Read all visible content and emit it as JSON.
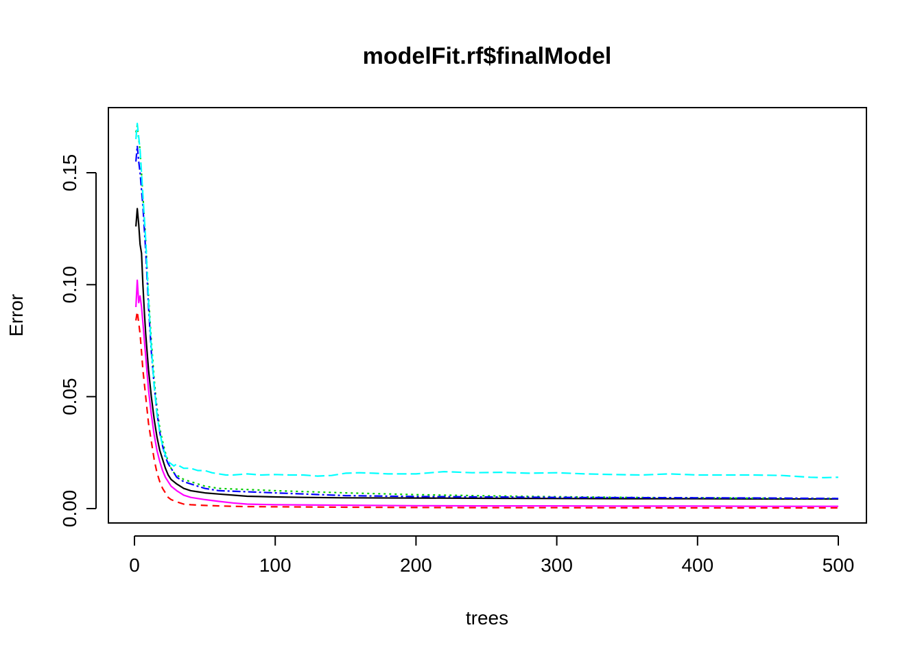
{
  "chart_data": {
    "type": "line",
    "title": "modelFit.rf$finalModel",
    "xlabel": "trees",
    "ylabel": "Error",
    "xlim": [
      0,
      500
    ],
    "ylim": [
      0,
      0.17
    ],
    "xticks": [
      0,
      100,
      200,
      300,
      400,
      500
    ],
    "xtick_labels": [
      "0",
      "100",
      "200",
      "300",
      "400",
      "500"
    ],
    "yticks": [
      0,
      0.05,
      0.1,
      0.15
    ],
    "ytick_labels": [
      "0.00",
      "0.05",
      "0.10",
      "0.15"
    ],
    "grid": false,
    "series": [
      {
        "key": "oob",
        "color": "#000000",
        "dash": "",
        "x": [
          1,
          2,
          3,
          4,
          5,
          6,
          7,
          8,
          10,
          12,
          14,
          16,
          18,
          20,
          22,
          24,
          26,
          28,
          30,
          35,
          40,
          45,
          50,
          60,
          70,
          80,
          100,
          120,
          150,
          200,
          250,
          300,
          350,
          400,
          450,
          500
        ],
        "y": [
          0.126,
          0.134,
          0.127,
          0.118,
          0.114,
          0.1,
          0.088,
          0.078,
          0.062,
          0.05,
          0.04,
          0.032,
          0.026,
          0.022,
          0.018,
          0.015,
          0.013,
          0.012,
          0.011,
          0.009,
          0.008,
          0.0075,
          0.007,
          0.0065,
          0.006,
          0.0055,
          0.0052,
          0.005,
          0.0048,
          0.0047,
          0.0046,
          0.0045,
          0.0044,
          0.0044,
          0.0043,
          0.0043
        ]
      },
      {
        "key": "A",
        "color": "#ff0000",
        "dash": "10 7",
        "x": [
          1,
          2,
          3,
          4,
          5,
          6,
          8,
          10,
          12,
          14,
          16,
          18,
          20,
          22,
          24,
          26,
          28,
          30,
          35,
          40,
          50,
          60,
          70,
          80,
          100,
          150,
          200,
          250,
          300,
          400,
          500
        ],
        "y": [
          0.084,
          0.088,
          0.083,
          0.078,
          0.07,
          0.062,
          0.05,
          0.038,
          0.03,
          0.022,
          0.016,
          0.012,
          0.009,
          0.007,
          0.005,
          0.004,
          0.0035,
          0.003,
          0.002,
          0.0017,
          0.0014,
          0.0012,
          0.001,
          0.0009,
          0.0008,
          0.0006,
          0.0005,
          0.0004,
          0.0004,
          0.0003,
          0.0003
        ]
      },
      {
        "key": "B",
        "color": "#00cd00",
        "dash": "3 5",
        "x": [
          1,
          2,
          3,
          4,
          6,
          8,
          10,
          12,
          14,
          16,
          18,
          20,
          22,
          24,
          26,
          28,
          30,
          35,
          40,
          50,
          60,
          80,
          100,
          150,
          200,
          250,
          300,
          350,
          400,
          450,
          500
        ],
        "y": [
          0.168,
          0.171,
          0.165,
          0.16,
          0.14,
          0.12,
          0.095,
          0.075,
          0.058,
          0.045,
          0.036,
          0.03,
          0.025,
          0.021,
          0.018,
          0.016,
          0.015,
          0.013,
          0.012,
          0.01,
          0.009,
          0.0085,
          0.008,
          0.007,
          0.0062,
          0.0057,
          0.0053,
          0.005,
          0.0048,
          0.0046,
          0.0045
        ]
      },
      {
        "key": "C",
        "color": "#0000ff",
        "dash": "12 4 3 4",
        "x": [
          1,
          2,
          3,
          4,
          6,
          8,
          10,
          12,
          14,
          16,
          18,
          20,
          22,
          24,
          26,
          28,
          30,
          35,
          40,
          50,
          60,
          80,
          100,
          150,
          200,
          250,
          300,
          350,
          400,
          450,
          500
        ],
        "y": [
          0.155,
          0.162,
          0.155,
          0.15,
          0.135,
          0.115,
          0.09,
          0.07,
          0.055,
          0.043,
          0.034,
          0.028,
          0.023,
          0.02,
          0.018,
          0.016,
          0.014,
          0.012,
          0.011,
          0.009,
          0.008,
          0.0075,
          0.007,
          0.0058,
          0.0054,
          0.0052,
          0.005,
          0.0049,
          0.0048,
          0.0047,
          0.0045
        ]
      },
      {
        "key": "D",
        "color": "#00ffff",
        "dash": "14 6",
        "x": [
          1,
          2,
          3,
          4,
          6,
          8,
          10,
          12,
          14,
          16,
          18,
          20,
          22,
          24,
          26,
          28,
          30,
          32,
          35,
          40,
          45,
          50,
          55,
          60,
          65,
          70,
          80,
          90,
          100,
          110,
          120,
          130,
          140,
          150,
          160,
          170,
          180,
          200,
          220,
          240,
          260,
          280,
          300,
          320,
          340,
          360,
          380,
          400,
          420,
          440,
          460,
          480,
          490,
          500
        ],
        "y": [
          0.165,
          0.172,
          0.166,
          0.16,
          0.14,
          0.12,
          0.093,
          0.072,
          0.055,
          0.042,
          0.034,
          0.028,
          0.024,
          0.021,
          0.02,
          0.019,
          0.02,
          0.019,
          0.018,
          0.018,
          0.017,
          0.017,
          0.016,
          0.0155,
          0.015,
          0.015,
          0.0155,
          0.015,
          0.0152,
          0.015,
          0.015,
          0.0145,
          0.0148,
          0.0158,
          0.016,
          0.0158,
          0.0155,
          0.0155,
          0.0165,
          0.016,
          0.0162,
          0.0158,
          0.016,
          0.0155,
          0.0152,
          0.015,
          0.0155,
          0.015,
          0.015,
          0.015,
          0.0148,
          0.014,
          0.0138,
          0.014
        ]
      },
      {
        "key": "E",
        "color": "#ff00ff",
        "dash": "",
        "x": [
          1,
          2,
          3,
          4,
          5,
          6,
          8,
          10,
          12,
          14,
          16,
          18,
          20,
          22,
          24,
          26,
          28,
          30,
          35,
          40,
          50,
          60,
          70,
          80,
          100,
          150,
          200,
          250,
          300,
          350,
          400,
          450,
          500
        ],
        "y": [
          0.09,
          0.102,
          0.092,
          0.095,
          0.09,
          0.083,
          0.068,
          0.053,
          0.042,
          0.033,
          0.026,
          0.021,
          0.017,
          0.014,
          0.012,
          0.01,
          0.009,
          0.008,
          0.006,
          0.005,
          0.004,
          0.0032,
          0.0025,
          0.002,
          0.0017,
          0.0015,
          0.0013,
          0.0012,
          0.0012,
          0.0011,
          0.0011,
          0.001,
          0.001
        ]
      }
    ]
  }
}
